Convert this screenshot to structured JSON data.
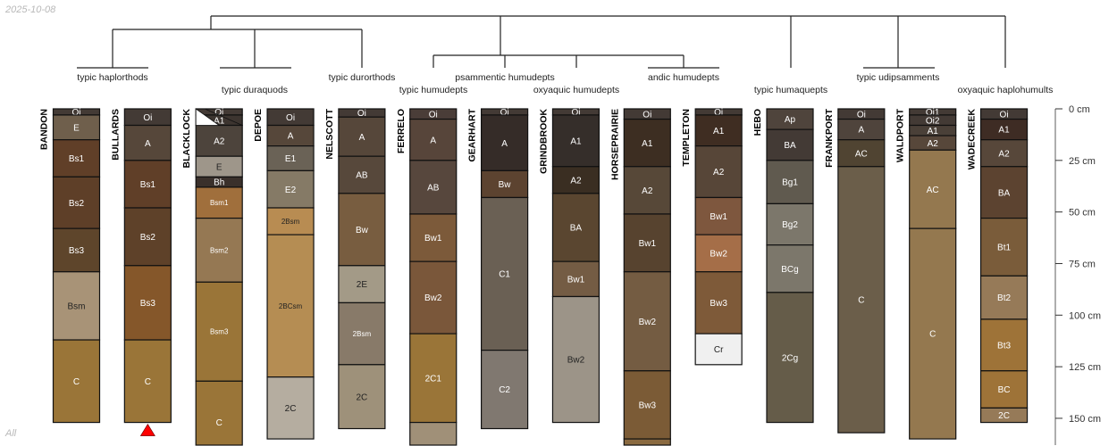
{
  "date_label": "2025-10-08",
  "panel_label": "All",
  "dendrogram": {
    "leaf_labels": [
      "typic haplorthods",
      "typic duraquods",
      "typic durorthods",
      "typic humudepts",
      "psammentic humudepts",
      "oxyaquic humudepts",
      "andic humudepts",
      "typic humaquepts",
      "typic udipsamments",
      "oxyaquic haplohumults"
    ]
  },
  "depth_axis": {
    "unit": "cm",
    "ticks": [
      0,
      25,
      50,
      75,
      100,
      125,
      150
    ],
    "labels": [
      "0 cm",
      "25 cm",
      "50 cm",
      "75 cm",
      "100 cm",
      "125 cm",
      "150 cm"
    ]
  },
  "profiles": [
    {
      "name": "BANDON",
      "horizons": [
        [
          "Oi",
          0,
          3,
          "#433a35"
        ],
        [
          "E",
          3,
          15,
          "#6f5f4c"
        ],
        [
          "Bs1",
          15,
          33,
          "#603f28"
        ],
        [
          "Bs2",
          33,
          58,
          "#5e3f28"
        ],
        [
          "Bs3",
          58,
          79,
          "#5e452b"
        ],
        [
          "Bsm",
          79,
          112,
          "#a89377"
        ],
        [
          "C",
          112,
          152,
          "#9a7538"
        ]
      ]
    },
    {
      "name": "BULLARDS",
      "marker": "red-triangle",
      "horizons": [
        [
          "Oi",
          0,
          8,
          "#433a35"
        ],
        [
          "A",
          8,
          25,
          "#56473a"
        ],
        [
          "Bs1",
          25,
          48,
          "#603f28"
        ],
        [
          "Bs2",
          48,
          76,
          "#5e4129"
        ],
        [
          "Bs3",
          76,
          112,
          "#85572a"
        ],
        [
          "C",
          112,
          152,
          "#9a7538"
        ]
      ]
    },
    {
      "name": "BLACKLOCK",
      "horizons": [
        [
          "Oi",
          0,
          3,
          "#433a35"
        ],
        [
          "A1",
          3,
          8,
          "#3d3530"
        ],
        [
          "A2",
          8,
          23,
          "#4d443c"
        ],
        [
          "E",
          23,
          33,
          "#9e968a"
        ],
        [
          "Bh",
          33,
          38,
          "#3a302b"
        ],
        [
          "Bsm1",
          38,
          53,
          "#a06f3c"
        ],
        [
          "Bsm2",
          53,
          84,
          "#957853"
        ],
        [
          "Bsm3",
          84,
          132,
          "#9a7538"
        ],
        [
          "C",
          132,
          172,
          "#9a7538"
        ]
      ]
    },
    {
      "name": "DEPOE",
      "horizons": [
        [
          "Oi",
          0,
          8,
          "#433a35"
        ],
        [
          "A",
          8,
          18,
          "#56473a"
        ],
        [
          "E1",
          18,
          30,
          "#6a6256"
        ],
        [
          "E2",
          30,
          48,
          "#857a66"
        ],
        [
          "2Bsm",
          48,
          61,
          "#b88c52"
        ],
        [
          "2BCsm",
          61,
          130,
          "#b58d53"
        ],
        [
          "2C",
          130,
          160,
          "#b5ada0"
        ]
      ]
    },
    {
      "name": "NELSCOTT",
      "horizons": [
        [
          "Oi",
          0,
          4,
          "#433a35"
        ],
        [
          "A",
          4,
          23,
          "#56473a"
        ],
        [
          "AB",
          23,
          41,
          "#57483b"
        ],
        [
          "Bw",
          41,
          76,
          "#785d40"
        ],
        [
          "2E",
          76,
          94,
          "#a39a87"
        ],
        [
          "2Bsm",
          94,
          124,
          "#887a69"
        ],
        [
          "2C",
          124,
          155,
          "#9e917a"
        ]
      ]
    },
    {
      "name": "FERRELO",
      "horizons": [
        [
          "Oi",
          0,
          5,
          "#4a3d38"
        ],
        [
          "A",
          5,
          25,
          "#57453a"
        ],
        [
          "AB",
          25,
          51,
          "#57473d"
        ],
        [
          "Bw1",
          51,
          74,
          "#7c5a3a"
        ],
        [
          "Bw2",
          74,
          109,
          "#7a573a"
        ],
        [
          "2C1",
          109,
          152,
          "#9a7538"
        ],
        [
          "",
          152,
          180,
          "#a09078"
        ]
      ]
    },
    {
      "name": "GEARHART",
      "horizons": [
        [
          "Oi",
          0,
          3,
          "#433a35"
        ],
        [
          "A",
          3,
          30,
          "#352c28"
        ],
        [
          "Bw",
          30,
          43,
          "#5c4330"
        ],
        [
          "C1",
          43,
          117,
          "#6a6054"
        ],
        [
          "C2",
          117,
          155,
          "#807870"
        ]
      ]
    },
    {
      "name": "GRINDBROOK",
      "horizons": [
        [
          "Oi",
          0,
          3,
          "#433a35"
        ],
        [
          "A1",
          3,
          28,
          "#352e2a"
        ],
        [
          "A2",
          28,
          41,
          "#3a2e22"
        ],
        [
          "BA",
          41,
          74,
          "#5a4630"
        ],
        [
          "Bw1",
          74,
          91,
          "#745c44"
        ],
        [
          "Bw2",
          91,
          152,
          "#9c9488"
        ]
      ]
    },
    {
      "name": "HORSEPRAIRIE",
      "horizons": [
        [
          "Oi",
          0,
          5,
          "#433a35"
        ],
        [
          "A1",
          5,
          28,
          "#3d2e22"
        ],
        [
          "A2",
          28,
          51,
          "#574838"
        ],
        [
          "Bw1",
          51,
          79,
          "#57432f"
        ],
        [
          "Bw2",
          79,
          127,
          "#745c42"
        ],
        [
          "Bw3",
          127,
          160,
          "#7b5b36"
        ],
        [
          "",
          160,
          180,
          "#8a6a40"
        ]
      ]
    },
    {
      "name": "TEMPLETON",
      "horizons": [
        [
          "Oi",
          0,
          3,
          "#433a35"
        ],
        [
          "A1",
          3,
          18,
          "#3f2d22"
        ],
        [
          "A2",
          18,
          43,
          "#574638"
        ],
        [
          "Bw1",
          43,
          61,
          "#7e573e"
        ],
        [
          "Bw2",
          61,
          79,
          "#a56e48"
        ],
        [
          "Bw3",
          79,
          109,
          "#7e5a39"
        ],
        [
          "Cr",
          109,
          124,
          "#f0f0f0"
        ]
      ]
    },
    {
      "name": "HEBO",
      "horizons": [
        [
          "Ap",
          0,
          10,
          "#4f443c"
        ],
        [
          "BA",
          10,
          25,
          "#433a35"
        ],
        [
          "Bg1",
          25,
          46,
          "#605a4f"
        ],
        [
          "Bg2",
          46,
          66,
          "#7c776b"
        ],
        [
          "BCg",
          66,
          89,
          "#7c776b"
        ],
        [
          "2Cg",
          89,
          152,
          "#655c49"
        ]
      ]
    },
    {
      "name": "FRANKPORT",
      "horizons": [
        [
          "Oi",
          0,
          5,
          "#433a35"
        ],
        [
          "A",
          5,
          15,
          "#4f443c"
        ],
        [
          "AC",
          15,
          28,
          "#504432"
        ],
        [
          "C",
          28,
          157,
          "#6b5e4a"
        ]
      ]
    },
    {
      "name": "WALDPORT",
      "horizons": [
        [
          "Oi1",
          0,
          3,
          "#433a35"
        ],
        [
          "Oi2",
          3,
          8,
          "#433a35"
        ],
        [
          "A1",
          8,
          13,
          "#4a4038"
        ],
        [
          "A2",
          13,
          20,
          "#57473a"
        ],
        [
          "AC",
          20,
          58,
          "#94784f"
        ],
        [
          "C",
          58,
          160,
          "#94784f"
        ]
      ]
    },
    {
      "name": "WADECREEK",
      "horizons": [
        [
          "Oi",
          0,
          5,
          "#433a35"
        ],
        [
          "A1",
          5,
          15,
          "#3e2c24"
        ],
        [
          "A2",
          15,
          28,
          "#57473a"
        ],
        [
          "BA",
          28,
          53,
          "#5c4330"
        ],
        [
          "Bt1",
          53,
          81,
          "#7a5c3a"
        ],
        [
          "Bt2",
          81,
          102,
          "#967a58"
        ],
        [
          "Bt3",
          102,
          127,
          "#9e7338"
        ],
        [
          "BC",
          127,
          145,
          "#9e7338"
        ],
        [
          "2C",
          145,
          152,
          "#967a58"
        ]
      ]
    }
  ]
}
